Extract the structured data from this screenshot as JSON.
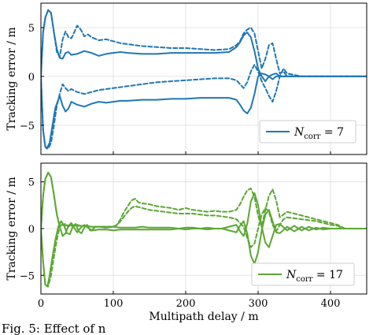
{
  "chart_data": [
    {
      "type": "line",
      "id": "top",
      "color": "#1f77b4",
      "ylabel": "Tracking error / m",
      "xlabel": "",
      "xlim": [
        0,
        450
      ],
      "ylim": [
        -8,
        7.5
      ],
      "xticks": [
        0,
        100,
        200,
        300,
        400
      ],
      "yticks": [
        -5,
        0,
        5
      ],
      "ytick_labels": [
        "−5",
        "0",
        "5"
      ],
      "grid": true,
      "legend": {
        "placement": "bottom-right",
        "label_base": "N",
        "label_sub": "corr",
        "label_rest": " = 7"
      },
      "series": [
        {
          "style": "solid",
          "x": [
            0,
            3,
            6,
            10,
            14,
            18,
            22,
            26,
            30,
            34,
            38,
            42,
            50,
            60,
            70,
            80,
            90,
            100,
            110,
            120,
            140,
            160,
            180,
            200,
            220,
            240,
            260,
            270,
            275,
            280,
            285,
            290,
            295,
            300,
            305,
            310,
            315,
            320,
            325,
            330,
            340,
            360,
            380,
            400,
            450
          ],
          "y": [
            0,
            4.5,
            6.0,
            6.8,
            6.5,
            4.5,
            2.8,
            1.9,
            1.8,
            2.4,
            2.5,
            2.2,
            2.3,
            2.6,
            2.4,
            2.1,
            2.3,
            2.4,
            2.5,
            2.4,
            2.3,
            2.3,
            2.4,
            2.4,
            2.4,
            2.4,
            2.5,
            3.0,
            3.5,
            4.2,
            4.5,
            4.0,
            2.6,
            0.8,
            0,
            -0.5,
            0,
            0.2,
            0.3,
            0,
            0,
            0,
            0,
            0,
            0
          ]
        },
        {
          "style": "solid",
          "x": [
            0,
            3,
            6,
            8,
            12,
            16,
            20,
            26,
            30,
            34,
            38,
            42,
            50,
            60,
            70,
            80,
            90,
            100,
            110,
            120,
            140,
            160,
            180,
            200,
            220,
            240,
            260,
            270,
            275,
            280,
            285,
            290,
            295,
            300,
            305,
            310,
            315,
            320,
            325,
            330,
            340,
            360,
            380,
            400,
            450
          ],
          "y": [
            0,
            -5.5,
            -7.2,
            -7.4,
            -6.8,
            -5.0,
            -3.2,
            -2.0,
            -3.0,
            -3.6,
            -3.3,
            -2.6,
            -2.9,
            -3.1,
            -2.8,
            -2.6,
            -2.7,
            -2.6,
            -2.5,
            -2.5,
            -2.4,
            -2.4,
            -2.3,
            -2.3,
            -2.2,
            -2.2,
            -2.2,
            -2.4,
            -2.9,
            -3.5,
            -3.8,
            -3.2,
            -1.8,
            0,
            0.3,
            0.2,
            0,
            -0.3,
            0,
            0,
            0,
            0,
            0,
            0,
            0
          ]
        },
        {
          "style": "dashed",
          "x": [
            0,
            3,
            6,
            10,
            14,
            18,
            22,
            26,
            30,
            34,
            38,
            42,
            46,
            50,
            55,
            60,
            65,
            70,
            80,
            90,
            100,
            110,
            120,
            140,
            160,
            180,
            200,
            220,
            240,
            260,
            270,
            275,
            280,
            285,
            290,
            295,
            300,
            305,
            310,
            315,
            320,
            325,
            330,
            335,
            340,
            360,
            380,
            400,
            450
          ],
          "y": [
            0,
            4.5,
            6.0,
            6.8,
            6.5,
            4.5,
            2.5,
            2.0,
            3.8,
            4.6,
            4.0,
            3.9,
            4.5,
            5.2,
            4.8,
            4.1,
            4.3,
            4.0,
            3.7,
            3.8,
            3.6,
            3.4,
            3.3,
            3.1,
            3.0,
            2.9,
            2.9,
            2.8,
            2.7,
            2.8,
            3.2,
            3.6,
            4.4,
            4.8,
            5.0,
            4.4,
            2.6,
            0.8,
            1.8,
            3.2,
            3.4,
            1.8,
            0.3,
            0.5,
            0,
            0,
            0,
            0,
            0
          ]
        },
        {
          "style": "dashed",
          "x": [
            0,
            3,
            6,
            10,
            14,
            18,
            22,
            26,
            30,
            34,
            38,
            42,
            50,
            60,
            70,
            80,
            90,
            100,
            120,
            140,
            160,
            180,
            200,
            220,
            240,
            260,
            270,
            275,
            280,
            285,
            290,
            295,
            300,
            305,
            310,
            315,
            320,
            325,
            330,
            335,
            340,
            360,
            380,
            400,
            450
          ],
          "y": [
            0,
            -5.5,
            -7.2,
            -7.4,
            -6.8,
            -5.0,
            -3.0,
            -1.8,
            -0.8,
            -1.2,
            -1.5,
            -1.3,
            -1.6,
            -1.8,
            -1.6,
            -1.4,
            -1.3,
            -1.2,
            -1.0,
            -0.8,
            -0.6,
            -0.5,
            -0.4,
            -0.3,
            -0.2,
            -0.2,
            -0.4,
            -0.8,
            -1.2,
            -0.6,
            0.5,
            1.2,
            0.5,
            -0.5,
            -1.2,
            -2.0,
            -2.6,
            -1.5,
            0,
            0.8,
            0.3,
            0,
            0,
            0,
            0
          ]
        }
      ]
    },
    {
      "type": "line",
      "id": "bottom",
      "color": "#5aa832",
      "ylabel": "Tracking error / m",
      "xlabel": "Multipath delay / m",
      "xlim": [
        0,
        450
      ],
      "ylim": [
        -7,
        7
      ],
      "xticks": [
        0,
        100,
        200,
        300,
        400
      ],
      "yticks": [
        -5,
        0,
        5
      ],
      "ytick_labels": [
        "−5",
        "0",
        "5"
      ],
      "grid": true,
      "legend": {
        "placement": "bottom-right",
        "label_base": "N",
        "label_sub": "corr",
        "label_rest": " = 17"
      },
      "series": [
        {
          "style": "solid",
          "x": [
            0,
            3,
            6,
            10,
            14,
            18,
            22,
            26,
            30,
            34,
            38,
            42,
            46,
            50,
            55,
            60,
            65,
            70,
            75,
            80,
            90,
            100,
            110,
            120,
            130,
            140,
            150,
            160,
            170,
            180,
            190,
            200,
            210,
            220,
            230,
            240,
            250,
            260,
            270,
            275,
            280,
            285,
            290,
            295,
            300,
            305,
            310,
            315,
            320,
            325,
            330,
            340,
            350,
            360,
            370,
            380,
            390,
            400,
            410,
            420,
            450
          ],
          "y": [
            0,
            3.5,
            5.3,
            6.0,
            5.5,
            3.6,
            1.5,
            0.2,
            -0.8,
            -0.5,
            0.3,
            0.6,
            0.1,
            -0.4,
            0.1,
            0.4,
            0.1,
            -0.2,
            0.2,
            0.2,
            0.1,
            0.2,
            0.1,
            0.1,
            0.1,
            0.2,
            0.1,
            0.1,
            0.1,
            0.1,
            0,
            0.1,
            0.1,
            0,
            0.1,
            0,
            0,
            0.2,
            0.4,
            -0.3,
            -0.8,
            0.5,
            2.9,
            3.8,
            2.5,
            0.2,
            -1.5,
            -2.0,
            -0.8,
            0.4,
            0.5,
            -0.2,
            0.3,
            -0.2,
            0.2,
            -0.1,
            0.1,
            0,
            0,
            0,
            0
          ]
        },
        {
          "style": "solid",
          "x": [
            0,
            3,
            6,
            9,
            12,
            16,
            20,
            24,
            28,
            32,
            36,
            40,
            44,
            48,
            52,
            56,
            60,
            64,
            68,
            72,
            80,
            90,
            100,
            110,
            120,
            130,
            140,
            150,
            160,
            170,
            180,
            190,
            200,
            210,
            220,
            230,
            240,
            250,
            260,
            270,
            275,
            280,
            285,
            290,
            295,
            300,
            305,
            310,
            315,
            320,
            325,
            330,
            340,
            350,
            360,
            370,
            380,
            390,
            400,
            410,
            420,
            450
          ],
          "y": [
            0,
            -3.5,
            -6.0,
            -6.2,
            -5.0,
            -3.0,
            -1.2,
            0.2,
            0.8,
            0.3,
            -0.5,
            -0.6,
            0.2,
            0.5,
            -0.3,
            -0.5,
            0.1,
            0.4,
            -0.2,
            -0.2,
            -0.1,
            -0.1,
            -0.2,
            -0.1,
            -0.1,
            -0.1,
            -0.1,
            -0.1,
            -0.1,
            -0.1,
            -0.1,
            0,
            -0.1,
            0,
            0,
            -0.1,
            0,
            0,
            -0.2,
            -0.4,
            0.3,
            0.8,
            -0.5,
            -2.9,
            -3.8,
            -2.5,
            -0.2,
            1.5,
            2.0,
            0.8,
            -0.4,
            -0.5,
            0.2,
            -0.3,
            0.2,
            -0.2,
            0.1,
            -0.1,
            0,
            0,
            0,
            0
          ]
        },
        {
          "style": "dashed",
          "x": [
            0,
            3,
            6,
            10,
            14,
            18,
            22,
            26,
            30,
            34,
            38,
            42,
            46,
            50,
            55,
            60,
            70,
            80,
            90,
            100,
            105,
            110,
            115,
            120,
            125,
            130,
            135,
            140,
            150,
            160,
            170,
            180,
            190,
            200,
            210,
            220,
            230,
            240,
            250,
            260,
            270,
            275,
            280,
            285,
            290,
            295,
            300,
            305,
            310,
            315,
            320,
            325,
            330,
            335,
            340,
            350,
            360,
            370,
            380,
            390,
            400,
            410,
            415,
            420,
            450
          ],
          "y": [
            0,
            3.5,
            5.3,
            6.0,
            5.5,
            3.6,
            1.5,
            0.3,
            0.4,
            0.5,
            0.2,
            0.5,
            0.3,
            0.4,
            0.3,
            0.3,
            0.2,
            0.2,
            0.2,
            0.2,
            0.4,
            1.0,
            1.8,
            2.4,
            3.0,
            3.2,
            2.8,
            2.7,
            2.6,
            2.4,
            2.3,
            2.2,
            2.0,
            2.2,
            2.0,
            1.9,
            1.8,
            1.9,
            1.8,
            1.8,
            2.0,
            2.6,
            3.4,
            4.1,
            4.3,
            3.4,
            1.4,
            0.2,
            2.0,
            3.5,
            4.2,
            3.0,
            1.2,
            1.5,
            1.8,
            1.6,
            1.4,
            1.2,
            1.0,
            0.8,
            0.6,
            0.4,
            0.2,
            0,
            0
          ]
        },
        {
          "style": "dashed",
          "x": [
            0,
            3,
            6,
            10,
            14,
            18,
            22,
            26,
            30,
            34,
            38,
            42,
            46,
            50,
            55,
            60,
            70,
            80,
            90,
            100,
            105,
            110,
            115,
            120,
            125,
            130,
            135,
            140,
            150,
            160,
            170,
            180,
            190,
            200,
            210,
            220,
            230,
            240,
            250,
            260,
            270,
            275,
            280,
            285,
            290,
            295,
            300,
            305,
            310,
            315,
            320,
            325,
            330,
            335,
            340,
            350,
            360,
            370,
            380,
            390,
            400,
            410,
            415,
            420,
            450
          ],
          "y": [
            0,
            -3.5,
            -6.0,
            -6.2,
            -5.0,
            -3.0,
            -1.2,
            0.2,
            0.5,
            0.3,
            0.4,
            0.3,
            0.4,
            0.3,
            0.3,
            0.3,
            0.2,
            0.2,
            0.2,
            0.2,
            0.4,
            0.8,
            1.3,
            1.8,
            2.2,
            2.4,
            2.3,
            2.2,
            2.0,
            1.9,
            1.8,
            1.7,
            1.6,
            1.6,
            1.6,
            1.5,
            1.4,
            1.4,
            1.3,
            1.2,
            1.0,
            0.6,
            0.2,
            -1.0,
            -2.0,
            -1.6,
            0,
            1.5,
            2.2,
            1.8,
            0.4,
            -0.3,
            0.4,
            1.0,
            1.2,
            1.1,
            1.0,
            0.9,
            0.8,
            0.6,
            0.4,
            0.3,
            0.1,
            0,
            0
          ]
        }
      ]
    }
  ],
  "caption": "Fig. 5: Effect of n"
}
